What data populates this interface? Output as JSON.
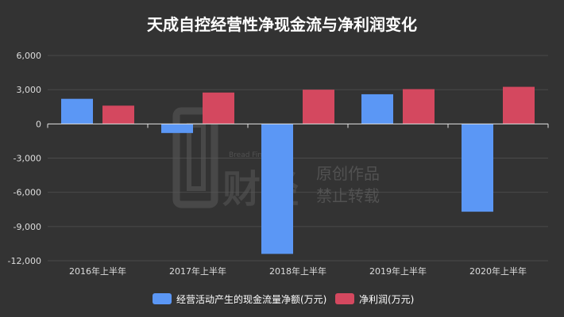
{
  "chart_data": {
    "type": "bar",
    "title": "天成自控经营性净现金流与净利润变化",
    "categories": [
      "2016年上半年",
      "2017年上半年",
      "2018年上半年",
      "2019年上半年",
      "2020年上半年"
    ],
    "series": [
      {
        "name": "经营活动产生的现金流量净额(万元)",
        "values": [
          2200,
          -800,
          -11400,
          2600,
          -7700
        ],
        "color": "#5b97f5"
      },
      {
        "name": "净利润(万元)",
        "values": [
          1600,
          2750,
          3000,
          3050,
          3250
        ],
        "color": "#d4485f"
      }
    ],
    "y_ticks": [
      "6,000",
      "3,000",
      "0",
      "-3,000",
      "-6,000",
      "-9,000",
      "-12,000"
    ],
    "ylim": [
      -12000,
      6000
    ],
    "grid": true,
    "legend_position": "bottom"
  },
  "watermark": {
    "brand_en": "Bread Finance",
    "line1": "原创作品",
    "line2": "禁止转载"
  }
}
